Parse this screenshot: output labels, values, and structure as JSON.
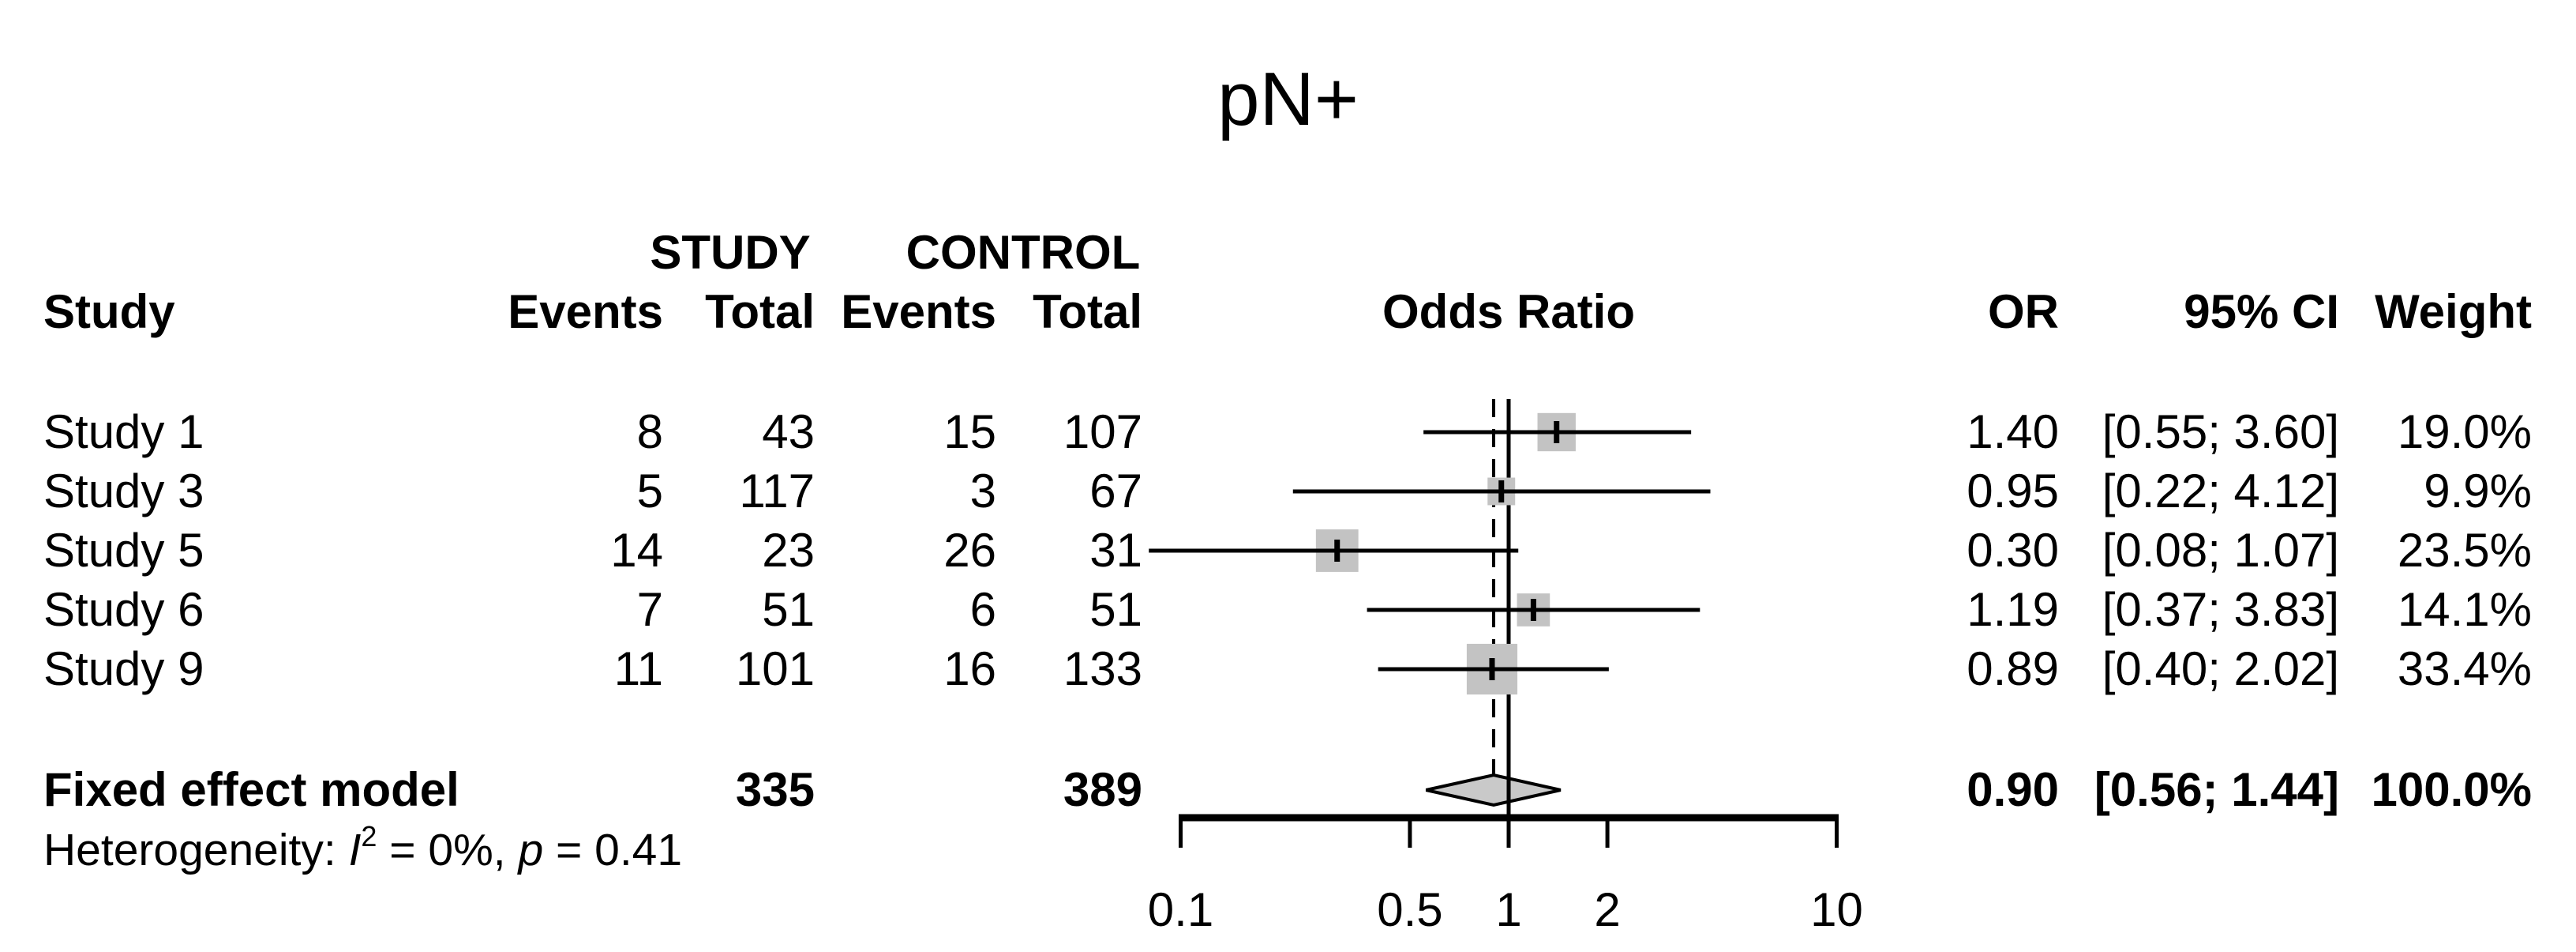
{
  "title": "pN+",
  "colors": {
    "background": "#ffffff",
    "text": "#000000",
    "line": "#000000",
    "square": "#c3c3c3",
    "diamond_fill": "#c9c9c9",
    "diamond_stroke": "#000000"
  },
  "headers": {
    "group_study": "STUDY",
    "group_control": "CONTROL",
    "study": "Study",
    "events": "Events",
    "total": "Total",
    "plot": "Odds Ratio",
    "or": "OR",
    "ci": "95% CI",
    "weight": "Weight"
  },
  "summary_row": {
    "label": "Fixed effect model",
    "total_study": "335",
    "total_control": "389",
    "or_label": "0.90",
    "ci_label": "[0.56; 1.44]",
    "weight_label": "100.0%"
  },
  "heterogeneity": {
    "pre": "Heterogeneity: ",
    "i_sym": "I",
    "i_sup": "2",
    "mid": " = 0%, ",
    "p_sym": "p",
    "post": " = 0.41"
  },
  "chart_data": {
    "type": "forest",
    "title": "pN+",
    "effect_measure": "Odds Ratio",
    "x_scale": "log10",
    "x_range": [
      0.1,
      10
    ],
    "x_ticks": [
      {
        "value": 0.1,
        "label": "0.1"
      },
      {
        "value": 0.5,
        "label": "0.5"
      },
      {
        "value": 1,
        "label": "1"
      },
      {
        "value": 2,
        "label": "2"
      },
      {
        "value": 10,
        "label": "10"
      }
    ],
    "ref_line": 1.0,
    "summary_line": 0.9,
    "studies": [
      {
        "label": "Study 1",
        "events_study": 8,
        "total_study": 43,
        "events_control": 15,
        "total_control": 107,
        "or": 1.4,
        "ci_low": 0.55,
        "ci_high": 3.6,
        "or_label": "1.40",
        "ci_label": "[0.55; 3.60]",
        "weight_pct": 19.0,
        "weight_label": "19.0%"
      },
      {
        "label": "Study 3",
        "events_study": 5,
        "total_study": 117,
        "events_control": 3,
        "total_control": 67,
        "or": 0.95,
        "ci_low": 0.22,
        "ci_high": 4.12,
        "or_label": "0.95",
        "ci_label": "[0.22; 4.12]",
        "weight_pct": 9.9,
        "weight_label": "9.9%"
      },
      {
        "label": "Study 5",
        "events_study": 14,
        "total_study": 23,
        "events_control": 26,
        "total_control": 31,
        "or": 0.3,
        "ci_low": 0.08,
        "ci_high": 1.07,
        "or_label": "0.30",
        "ci_label": "[0.08; 1.07]",
        "weight_pct": 23.5,
        "weight_label": "23.5%"
      },
      {
        "label": "Study 6",
        "events_study": 7,
        "total_study": 51,
        "events_control": 6,
        "total_control": 51,
        "or": 1.19,
        "ci_low": 0.37,
        "ci_high": 3.83,
        "or_label": "1.19",
        "ci_label": "[0.37; 3.83]",
        "weight_pct": 14.1,
        "weight_label": "14.1%"
      },
      {
        "label": "Study 9",
        "events_study": 11,
        "total_study": 101,
        "events_control": 16,
        "total_control": 133,
        "or": 0.89,
        "ci_low": 0.4,
        "ci_high": 2.02,
        "or_label": "0.89",
        "ci_label": "[0.40; 2.02]",
        "weight_pct": 33.4,
        "weight_label": "33.4%"
      }
    ],
    "summary": {
      "model": "Fixed effect model",
      "total_study": 335,
      "total_control": 389,
      "or": 0.9,
      "ci_low": 0.56,
      "ci_high": 1.44,
      "weight_pct": 100.0,
      "heterogeneity_i2": "0%",
      "heterogeneity_p": 0.41
    }
  }
}
